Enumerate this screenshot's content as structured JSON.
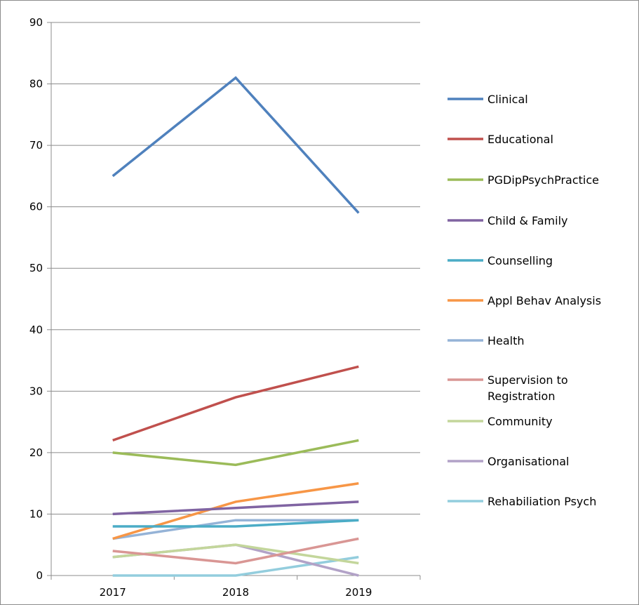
{
  "chart_data": {
    "type": "line",
    "title": "",
    "xlabel": "",
    "ylabel": "",
    "x": [
      "2017",
      "2018",
      "2019"
    ],
    "ylim": [
      0,
      90
    ],
    "yticks": [
      0,
      10,
      20,
      30,
      40,
      50,
      60,
      70,
      80,
      90
    ],
    "grid": "horizontal",
    "legend_position": "right",
    "series": [
      {
        "name": "Clinical",
        "values": [
          65,
          81,
          59
        ],
        "color": "#4f81bd"
      },
      {
        "name": "Educational",
        "values": [
          22,
          29,
          34
        ],
        "color": "#c0504d"
      },
      {
        "name": "PGDipPsychPractice",
        "values": [
          20,
          18,
          22
        ],
        "color": "#9bbb59"
      },
      {
        "name": "Child & Family",
        "values": [
          10,
          11,
          12
        ],
        "color": "#8064a2"
      },
      {
        "name": "Counselling",
        "values": [
          8,
          8,
          9
        ],
        "color": "#4bacc6"
      },
      {
        "name": "Appl Behav Analysis",
        "values": [
          6,
          12,
          15
        ],
        "color": "#f79646"
      },
      {
        "name": "Health",
        "values": [
          6,
          9,
          9
        ],
        "color": "#95b3d7"
      },
      {
        "name": "Supervision to Registration",
        "values": [
          4,
          2,
          6
        ],
        "color": "#d99694"
      },
      {
        "name": "Community",
        "values": [
          3,
          5,
          2
        ],
        "color": "#c3d69b"
      },
      {
        "name": "Organisational",
        "values": [
          3,
          5,
          0
        ],
        "color": "#b2a2c7"
      },
      {
        "name": "Rehabiliation Psych",
        "values": [
          0,
          0,
          3
        ],
        "color": "#93cddd"
      }
    ]
  }
}
